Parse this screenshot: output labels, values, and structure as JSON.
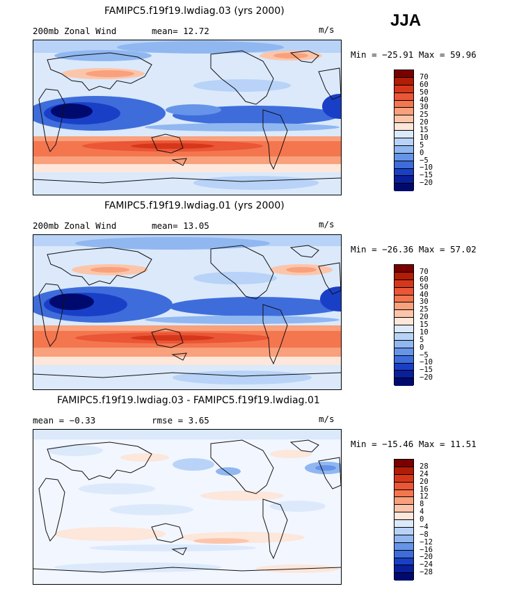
{
  "season": "JJA",
  "panels": [
    {
      "title": "FAMIPC5.f19f19.lwdiag.03 (yrs 2000)",
      "left_label": "200mb Zonal Wind",
      "mid_label": "mean=   12.72",
      "units": "m/s",
      "minmax": "Min = −25.91 Max =  59.96",
      "ticks": [
        "70",
        "60",
        "50",
        "40",
        "30",
        "25",
        "20",
        "15",
        "10",
        "5",
        "0",
        "−5",
        "−10",
        "−15",
        "−20"
      ]
    },
    {
      "title": "FAMIPC5.f19f19.lwdiag.01 (yrs 2000)",
      "left_label": "200mb Zonal Wind",
      "mid_label": "mean=   13.05",
      "units": "m/s",
      "minmax": "Min = −26.36 Max =  57.02",
      "ticks": [
        "70",
        "60",
        "50",
        "40",
        "30",
        "25",
        "20",
        "15",
        "10",
        "5",
        "0",
        "−5",
        "−10",
        "−15",
        "−20"
      ]
    },
    {
      "title": "FAMIPC5.f19f19.lwdiag.03 - FAMIPC5.f19f19.lwdiag.01",
      "left_label": "mean =  −0.33",
      "mid_label": "rmse =    3.65",
      "units": "m/s",
      "minmax": "Min = −15.46 Max =  11.51",
      "ticks": [
        "28",
        "24",
        "20",
        "16",
        "12",
        "8",
        "4",
        "0",
        "−4",
        "−8",
        "−12",
        "−16",
        "−20",
        "−24",
        "−28"
      ]
    }
  ],
  "colors": {
    "scale": [
      "#7a0000",
      "#b31c05",
      "#d6371b",
      "#ea5636",
      "#f4764f",
      "#f9a07c",
      "#fcc5aa",
      "#fde6da",
      "#dbe9fb",
      "#b8d3f7",
      "#90b7f0",
      "#6694e8",
      "#3e6ddb",
      "#1a3fc7",
      "#0a1f9c",
      "#000a6e"
    ],
    "ocean_light": "#f2f6ff",
    "coast": "#111111"
  }
}
